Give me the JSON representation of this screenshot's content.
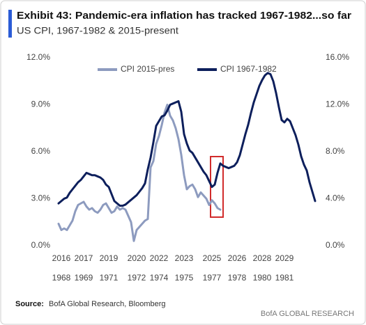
{
  "chart_data": {
    "type": "line",
    "title": "Exhibit 43: Pandemic-era inflation has tracked 1967-1982...so far",
    "subtitle": "US CPI, 1967-1982 & 2015-present",
    "source_label": "Source:",
    "source": "BofA Global Research, Bloomberg",
    "branding": "BofA GLOBAL RESEARCH",
    "categories": [
      null,
      "2016",
      null,
      null,
      null,
      null,
      null,
      null,
      null,
      "2017",
      null,
      null,
      null,
      null,
      null,
      null,
      null,
      null,
      "2019",
      null,
      null,
      null,
      null,
      null,
      null,
      null,
      null,
      null,
      "2020",
      null,
      null,
      null,
      null,
      null,
      null,
      null,
      "2022",
      null,
      null,
      null,
      null,
      null,
      null,
      null,
      null,
      "2023",
      null,
      null,
      null,
      null,
      null,
      null,
      null,
      null,
      null,
      "2025",
      null,
      null,
      null,
      null,
      null,
      null,
      null,
      null,
      "2026",
      null,
      null,
      null,
      null,
      null,
      null,
      null,
      null,
      "2028",
      null,
      null,
      null,
      null,
      null,
      null,
      null,
      "2029",
      null,
      null,
      null,
      null,
      null,
      null,
      null,
      null,
      null,
      null,
      null
    ],
    "categories2": [
      null,
      "1968",
      null,
      null,
      null,
      null,
      null,
      null,
      null,
      "1969",
      null,
      null,
      null,
      null,
      null,
      null,
      null,
      null,
      "1971",
      null,
      null,
      null,
      null,
      null,
      null,
      null,
      null,
      null,
      "1972",
      null,
      null,
      null,
      null,
      null,
      null,
      null,
      "1974",
      null,
      null,
      null,
      null,
      null,
      null,
      null,
      null,
      "1975",
      null,
      null,
      null,
      null,
      null,
      null,
      null,
      null,
      null,
      "1977",
      null,
      null,
      null,
      null,
      null,
      null,
      null,
      null,
      "1978",
      null,
      null,
      null,
      null,
      null,
      null,
      null,
      null,
      "1980",
      null,
      null,
      null,
      null,
      null,
      null,
      null,
      "1981",
      null,
      null,
      null,
      null,
      null,
      null,
      null,
      null,
      null,
      null,
      null
    ],
    "series": [
      {
        "name": "CPI 2015-pres",
        "color": "#8d9bbf",
        "values": [
          1.4,
          1.0,
          1.1,
          1.0,
          1.3,
          1.6,
          2.2,
          2.6,
          2.7,
          2.8,
          2.5,
          2.3,
          2.4,
          2.2,
          2.1,
          2.3,
          2.6,
          2.7,
          2.4,
          2.1,
          2.2,
          2.5,
          2.3,
          2.4,
          2.3,
          1.9,
          1.5,
          0.3,
          1.0,
          1.2,
          1.4,
          1.6,
          1.7,
          5.0,
          5.4,
          6.5,
          7.0,
          7.7,
          8.5,
          9.0,
          8.3,
          8.0,
          7.5,
          6.8,
          5.8,
          4.5,
          3.6,
          3.8,
          3.9,
          3.6,
          3.1,
          3.4,
          3.2,
          3.0,
          2.6,
          2.9,
          2.7,
          2.4,
          2.3,
          null,
          null,
          null,
          null,
          null,
          null,
          null,
          null,
          null,
          null,
          null,
          null,
          null,
          null,
          null,
          null,
          null,
          null,
          null,
          null,
          null,
          null,
          null,
          null,
          null,
          null,
          null,
          null,
          null,
          null,
          null,
          null,
          null,
          null
        ]
      },
      {
        "name": "CPI 1967-1982",
        "color": "#0d1f5c",
        "axis": "y2",
        "values": [
          3.6,
          3.8,
          4.0,
          4.1,
          4.5,
          4.8,
          5.1,
          5.4,
          5.6,
          5.9,
          6.2,
          6.1,
          6.0,
          6.0,
          5.9,
          5.8,
          5.6,
          5.2,
          5.0,
          4.4,
          3.8,
          3.6,
          3.4,
          3.4,
          3.5,
          3.7,
          3.9,
          4.1,
          4.3,
          4.6,
          4.9,
          5.3,
          6.5,
          7.5,
          8.8,
          10.2,
          10.6,
          11.0,
          11.1,
          11.5,
          12.0,
          12.1,
          12.2,
          12.3,
          11.4,
          9.5,
          8.7,
          8.1,
          7.9,
          7.5,
          7.1,
          6.7,
          6.3,
          6.0,
          5.5,
          5.0,
          5.2,
          6.2,
          7.0,
          6.8,
          6.7,
          6.6,
          6.7,
          6.8,
          7.1,
          7.7,
          8.6,
          9.5,
          10.3,
          11.3,
          12.2,
          12.9,
          13.6,
          14.1,
          14.5,
          14.7,
          14.6,
          14.0,
          13.0,
          11.8,
          10.7,
          10.5,
          10.8,
          10.6,
          10.0,
          9.4,
          8.6,
          7.6,
          6.9,
          6.4,
          5.4,
          4.6,
          3.8
        ]
      }
    ],
    "ylim": [
      0,
      12
    ],
    "yticks": [
      {
        "value": 0,
        "label": "0.0%"
      },
      {
        "value": 3,
        "label": "3.0%"
      },
      {
        "value": 6,
        "label": "6.0%"
      },
      {
        "value": 9,
        "label": "9.0%"
      },
      {
        "value": 12,
        "label": "12.0%"
      }
    ],
    "y2lim": [
      0,
      16
    ],
    "y2ticks": [
      {
        "value": 0,
        "label": "0.0%"
      },
      {
        "value": 4,
        "label": "4.0%"
      },
      {
        "value": 8,
        "label": "8.0%"
      },
      {
        "value": 12,
        "label": "12.0%"
      },
      {
        "value": 16,
        "label": "16.0%"
      }
    ],
    "legend": "top"
  }
}
